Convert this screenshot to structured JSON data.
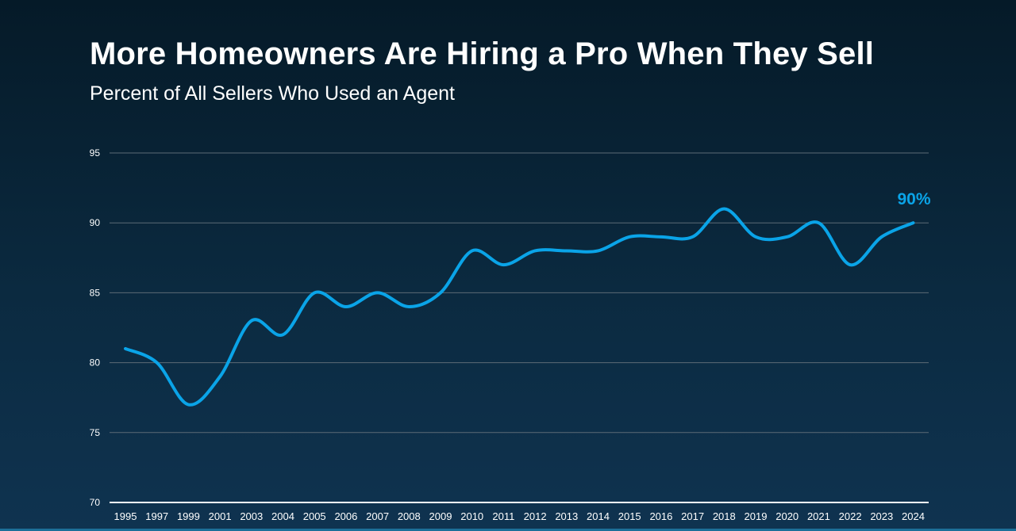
{
  "header": {
    "title": "More Homeowners Are Hiring a Pro When They Sell",
    "subtitle": "Percent of All Sellers Who Used an Agent"
  },
  "colors": {
    "line": "#0aa4e8",
    "grid": "#5c6b76",
    "axis": "#ffffff",
    "callout": "#0aa4e8"
  },
  "chart_data": {
    "type": "line",
    "title": "More Homeowners Are Hiring a Pro When They Sell",
    "subtitle": "Percent of All Sellers Who Used an Agent",
    "xlabel": "",
    "ylabel": "",
    "categories": [
      "1995",
      "1997",
      "1999",
      "2001",
      "2003",
      "2004",
      "2005",
      "2006",
      "2007",
      "2008",
      "2009",
      "2010",
      "2011",
      "2012",
      "2013",
      "2014",
      "2015",
      "2016",
      "2017",
      "2018",
      "2019",
      "2020",
      "2021",
      "2022",
      "2023",
      "2024"
    ],
    "values": [
      81,
      80,
      77,
      79,
      83,
      82,
      85,
      84,
      85,
      84,
      85,
      88,
      87,
      88,
      88,
      88,
      89,
      89,
      89,
      91,
      89,
      89,
      90,
      87,
      89,
      90
    ],
    "ylim": [
      70,
      95
    ],
    "yticks": [
      "70",
      "75",
      "80",
      "85",
      "90",
      "95"
    ],
    "grid": true,
    "annotation": "90%",
    "annotation_point": "2024"
  }
}
